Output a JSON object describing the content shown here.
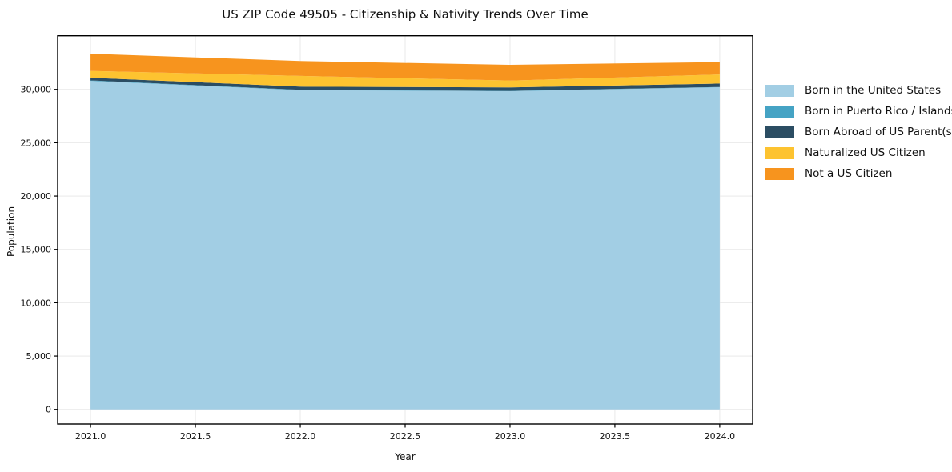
{
  "chart_data": {
    "type": "area",
    "stacked": true,
    "title": "US ZIP Code 49505 - Citizenship & Nativity Trends Over Time",
    "xlabel": "Year",
    "ylabel": "Population",
    "x": [
      2021,
      2022,
      2023,
      2024
    ],
    "series": [
      {
        "name": "Born in the United States",
        "color": "#a2cee4",
        "values": [
          30800,
          29930,
          29830,
          30200
        ]
      },
      {
        "name": "Born in Puerto Rico / Islands",
        "color": "#45a3c4",
        "values": [
          40,
          30,
          30,
          30
        ]
      },
      {
        "name": "Born Abroad of US Parent(s)",
        "color": "#2b4d63",
        "values": [
          260,
          300,
          320,
          320
        ]
      },
      {
        "name": "Naturalized US Citizen",
        "color": "#fdc330",
        "values": [
          630,
          1000,
          645,
          850
        ]
      },
      {
        "name": "Not a US Citizen",
        "color": "#f7941e",
        "values": [
          1620,
          1400,
          1480,
          1150
        ]
      }
    ],
    "xlim": [
      2020.843,
      2024.157
    ],
    "ylim": [
      -1370,
      35080
    ],
    "xticks": [
      "2021.0",
      "2021.5",
      "2022.0",
      "2022.5",
      "2023.0",
      "2023.5",
      "2024.0"
    ],
    "xtick_values": [
      2021,
      2021.5,
      2022,
      2022.5,
      2023,
      2023.5,
      2024
    ],
    "yticks": [
      "0",
      "5,000",
      "10,000",
      "15,000",
      "20,000",
      "25,000",
      "30,000"
    ],
    "ytick_values": [
      0,
      5000,
      10000,
      15000,
      20000,
      25000,
      30000
    ],
    "grid": true,
    "grid_color": "#e9e9e9",
    "frame_color": "#000000",
    "text_color": "#111111",
    "legend_position": "right"
  }
}
